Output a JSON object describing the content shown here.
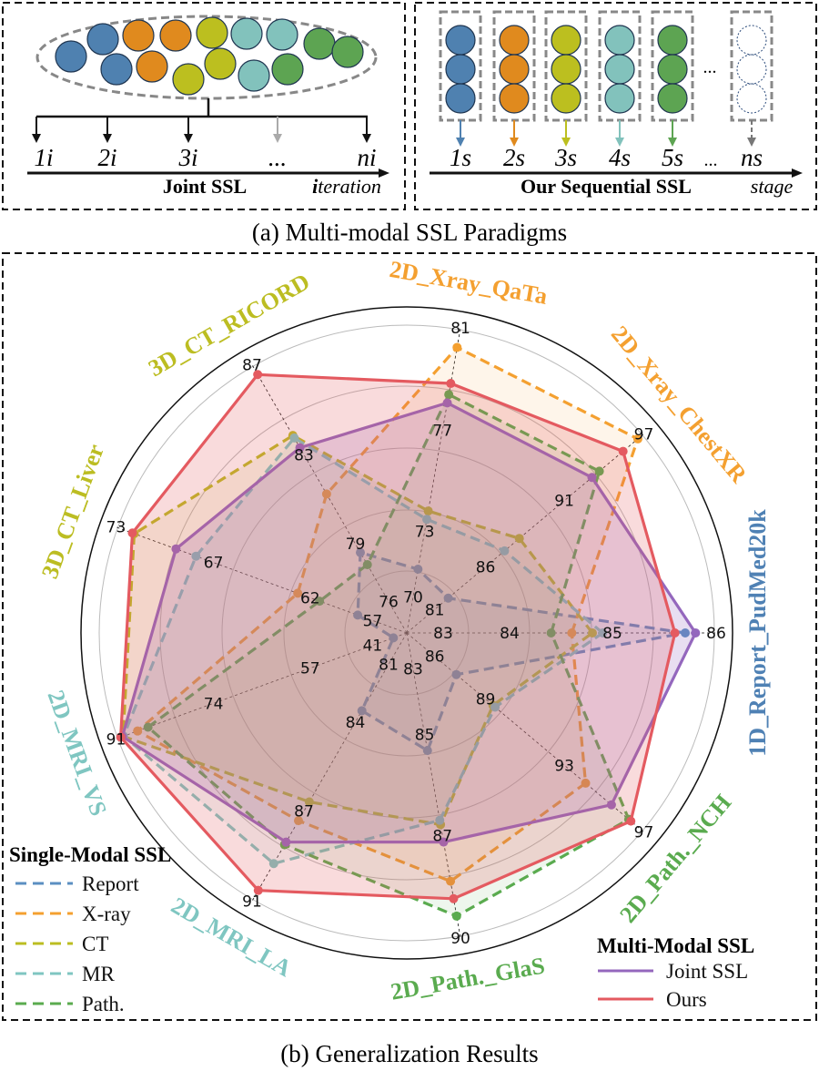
{
  "panel_a": {
    "caption": "(a) Multi-modal SSL Paradigms",
    "joint": {
      "title": "Joint SSL",
      "axis_label": "iteration",
      "steps": [
        "1i",
        "2i",
        "3i",
        "...",
        "ni"
      ]
    },
    "sequential": {
      "title": "Our Sequential SSL",
      "axis_label": "stage",
      "steps": [
        "1s",
        "2s",
        "3s",
        "4s",
        "5s",
        "ns"
      ],
      "ellipsis": "...",
      "ellipsis2": "..."
    },
    "modality_colors": {
      "report": "#4f81b0",
      "xray": "#e08a1e",
      "ct": "#bcbf1f",
      "mr": "#82c2bc",
      "path": "#5da452"
    }
  },
  "panel_b": {
    "caption": "(b) Generalization Results",
    "legend_single": {
      "title": "Single-Modal SSL",
      "items": [
        "Report",
        "X-ray",
        "CT",
        "MR",
        "Path."
      ]
    },
    "legend_multi": {
      "title": "Multi-Modal SSL",
      "items": [
        "Joint SSL",
        "Ours"
      ]
    }
  },
  "chart_data": {
    "type": "radar",
    "legend_placement": "bottom-left and bottom-right",
    "axes": [
      {
        "label": "1D_Report_PudMed20k",
        "color": "#4f81b4",
        "ticks": [
          83,
          84,
          85,
          86
        ]
      },
      {
        "label": "2D_Xray_ChestXR",
        "color": "#f4a030",
        "ticks": [
          81,
          86,
          91,
          97
        ]
      },
      {
        "label": "2D_Xray_QaTa",
        "color": "#f4a030",
        "ticks": [
          70,
          73,
          77,
          81
        ]
      },
      {
        "label": "3D_CT_RICORD",
        "color": "#bcbd22",
        "ticks": [
          76,
          79,
          83,
          87
        ]
      },
      {
        "label": "3D_CT_Liver",
        "color": "#bcbd22",
        "ticks": [
          57,
          62,
          67,
          73
        ]
      },
      {
        "label": "2D_MRI_VS",
        "color": "#7fc6c1",
        "ticks": [
          41,
          57,
          74,
          91
        ]
      },
      {
        "label": "2D_MRI_LA",
        "color": "#7fc6c1",
        "ticks": [
          81,
          84,
          87,
          91
        ]
      },
      {
        "label": "2D_Path._GlaS",
        "color": "#5aab4f",
        "ticks": [
          83,
          85,
          87,
          90
        ]
      },
      {
        "label": "2D_Path._NCH",
        "color": "#5aab4f",
        "ticks": [
          86,
          89,
          93,
          97
        ]
      }
    ],
    "series": [
      {
        "name": "Report",
        "group": "Single-Modal SSL",
        "style": "dashed",
        "color": "#5b8fc2",
        "values": [
          85.7,
          83.8,
          72.3,
          79.3,
          59.7,
          43.3,
          83.9,
          85.7,
          88.3
        ]
      },
      {
        "name": "X-ray",
        "group": "Single-Modal SSL",
        "style": "dashed",
        "color": "#f4a030",
        "values": [
          84.6,
          96.6,
          80.3,
          81.7,
          63.0,
          87.3,
          88.0,
          88.7,
          94.3
        ]
      },
      {
        "name": "CT",
        "group": "Single-Modal SSL",
        "style": "dashed",
        "color": "#bcbd22",
        "values": [
          84.8,
          88.6,
          74.4,
          84.1,
          72.0,
          89.8,
          87.3,
          87.4,
          90.0
        ]
      },
      {
        "name": "MR",
        "group": "Single-Modal SSL",
        "style": "dashed",
        "color": "#7fc6c1",
        "values": [
          84.9,
          87.6,
          74.1,
          84.0,
          68.6,
          89.7,
          89.6,
          87.3,
          90.1
        ]
      },
      {
        "name": "Path.",
        "group": "Single-Modal SSL",
        "style": "dashed",
        "color": "#5aab4f",
        "values": [
          84.4,
          94.0,
          78.6,
          78.8,
          61.8,
          85.5,
          88.9,
          89.5,
          96.3
        ]
      },
      {
        "name": "Joint SSL",
        "group": "Multi-Modal SSL",
        "style": "solid",
        "color": "#9467bd",
        "values": [
          85.8,
          93.5,
          78.3,
          83.6,
          69.7,
          89.9,
          88.8,
          87.8,
          95.5
        ]
      },
      {
        "name": "Ours",
        "group": "Multi-Modal SSL",
        "style": "solid",
        "color": "#e45a60",
        "values": [
          85.6,
          95.6,
          79.0,
          86.6,
          72.1,
          90.2,
          90.6,
          89.1,
          96.4
        ]
      }
    ]
  }
}
